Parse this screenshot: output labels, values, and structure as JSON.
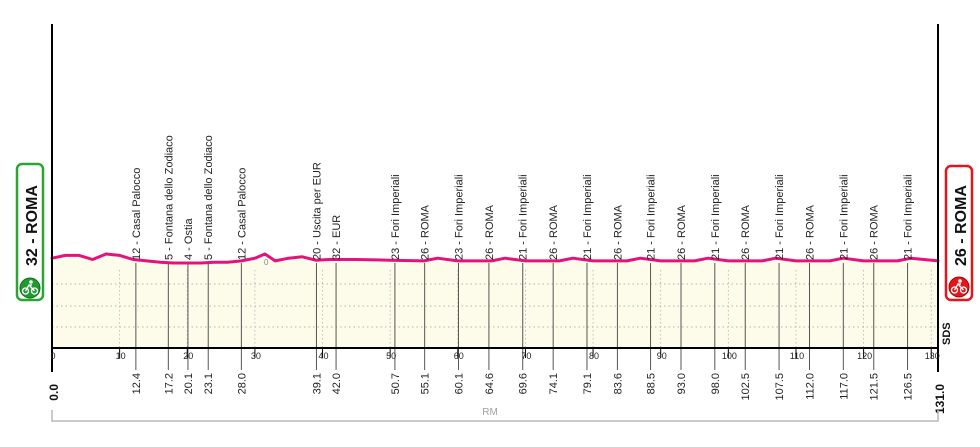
{
  "chart_data": {
    "type": "area",
    "title": "",
    "xlabel": "",
    "ylabel": "",
    "xlim": [
      0,
      131
    ],
    "x_ticks": [
      0,
      10,
      20,
      30,
      40,
      50,
      60,
      70,
      80,
      90,
      100,
      110,
      120,
      130
    ],
    "grid": true,
    "start": {
      "km": "0.0",
      "label": "32 - ROMA",
      "color": "#2aa532"
    },
    "finish": {
      "km": "131.0",
      "label": "26 - ROMA",
      "color": "#e3161b"
    },
    "line_color": "#e5127e",
    "fill_color": "#fdfcea",
    "area_label": "RM",
    "brand": "SDS",
    "small_marker": "0",
    "waypoints": [
      {
        "km": 12.4,
        "km_label": "12.4",
        "name": "12 - Casal Palocco"
      },
      {
        "km": 17.2,
        "km_label": "17.2",
        "name": "5 - Fontana dello Zodiaco"
      },
      {
        "km": 20.1,
        "km_label": "20.1",
        "name": "4 - Ostia"
      },
      {
        "km": 23.1,
        "km_label": "23.1",
        "name": "5 - Fontana dello Zodiaco"
      },
      {
        "km": 28.0,
        "km_label": "28.0",
        "name": "12 - Casal Palocco"
      },
      {
        "km": 39.1,
        "km_label": "39.1",
        "name": "20 - Uscita per EUR"
      },
      {
        "km": 42.0,
        "km_label": "42.0",
        "name": "32 - EUR"
      },
      {
        "km": 50.7,
        "km_label": "50.7",
        "name": "23 - Fori Imperiali"
      },
      {
        "km": 55.1,
        "km_label": "55.1",
        "name": "26 - ROMA"
      },
      {
        "km": 60.1,
        "km_label": "60.1",
        "name": "23 - Fori Imperiali"
      },
      {
        "km": 64.6,
        "km_label": "64.6",
        "name": "26 - ROMA"
      },
      {
        "km": 69.6,
        "km_label": "69.6",
        "name": "21 - Fori Imperiali"
      },
      {
        "km": 74.1,
        "km_label": "74.1",
        "name": "26 - ROMA"
      },
      {
        "km": 79.1,
        "km_label": "79.1",
        "name": "21 - Fori Imperiali"
      },
      {
        "km": 83.6,
        "km_label": "83.6",
        "name": "26 - ROMA"
      },
      {
        "km": 88.5,
        "km_label": "88.5",
        "name": "21 - Fori Imperiali"
      },
      {
        "km": 93.0,
        "km_label": "93.0",
        "name": "26 - ROMA"
      },
      {
        "km": 98.0,
        "km_label": "98.0",
        "name": "21 - Fori Imperiali"
      },
      {
        "km": 102.5,
        "km_label": "102.5",
        "name": "26 - ROMA"
      },
      {
        "km": 107.5,
        "km_label": "107.5",
        "name": "21 - Fori Imperiali"
      },
      {
        "km": 112.0,
        "km_label": "112.0",
        "name": "26 - ROMA"
      },
      {
        "km": 117.0,
        "km_label": "117.0",
        "name": "21 - Fori Imperiali"
      },
      {
        "km": 121.5,
        "km_label": "121.5",
        "name": "26 - ROMA"
      },
      {
        "km": 126.5,
        "km_label": "126.5",
        "name": "21 - Fori Imperiali"
      }
    ],
    "profile_altitude_m": {
      "x": [
        0,
        2,
        4,
        6,
        8,
        10,
        12,
        14,
        16,
        18,
        20,
        22,
        24,
        26,
        28,
        30,
        31.5,
        33,
        35,
        37,
        39,
        41,
        45,
        50,
        55,
        57,
        60,
        65,
        67,
        70,
        75,
        77,
        80,
        85,
        87,
        90,
        95,
        97,
        100,
        105,
        107,
        110,
        115,
        117,
        120,
        125,
        127,
        131
      ],
      "y": [
        30,
        34,
        34,
        28,
        36,
        34,
        28,
        26,
        24,
        23,
        23,
        23,
        24,
        24,
        26,
        30,
        36,
        26,
        30,
        32,
        27,
        28,
        28,
        27,
        26,
        30,
        26,
        26,
        30,
        26,
        26,
        30,
        26,
        26,
        30,
        26,
        26,
        30,
        26,
        26,
        30,
        26,
        26,
        30,
        26,
        26,
        30,
        26
      ]
    }
  }
}
